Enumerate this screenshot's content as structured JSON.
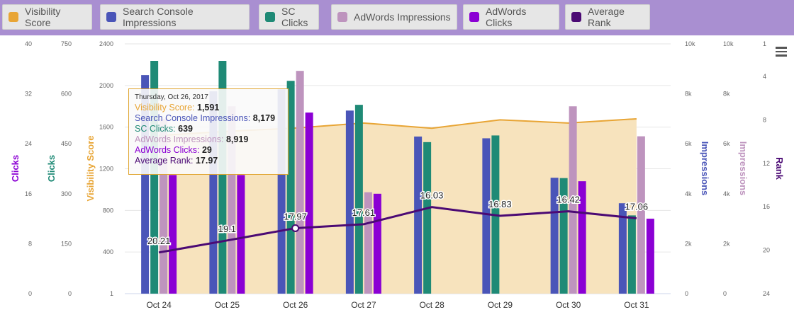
{
  "legend": [
    {
      "label": "Visibility Score",
      "color": "#e8a535"
    },
    {
      "label": "Search Console Impressions",
      "color": "#4a55b8"
    },
    {
      "label": "SC Clicks",
      "color": "#1f8a76"
    },
    {
      "label": "AdWords Impressions",
      "color": "#be94be"
    },
    {
      "label": "AdWords Clicks",
      "color": "#8b00d4"
    },
    {
      "label": "Average Rank",
      "color": "#4b0a74"
    }
  ],
  "tooltip": {
    "date": "Thursday, Oct 26, 2017",
    "rows": [
      {
        "label": "Visibility Score:",
        "value": "1,591",
        "color": "#e8a535"
      },
      {
        "label": "Search Console Impressions:",
        "value": "8,179",
        "color": "#4a55b8"
      },
      {
        "label": "SC Clicks:",
        "value": "639",
        "color": "#1f8a76"
      },
      {
        "label": "AdWords Impressions:",
        "value": "8,919",
        "color": "#be94be"
      },
      {
        "label": "AdWords Clicks:",
        "value": "29",
        "color": "#8b00d4"
      },
      {
        "label": "Average Rank:",
        "value": "17.97",
        "color": "#4b0a74"
      }
    ]
  },
  "chart_data": {
    "type": "bar",
    "categories": [
      "Oct 24",
      "Oct 25",
      "Oct 26",
      "Oct 27",
      "Oct 28",
      "Oct 29",
      "Oct 30",
      "Oct 31"
    ],
    "axes": {
      "adwords_clicks": {
        "title": "Clicks",
        "ticks": [
          "40",
          "32",
          "24",
          "16",
          "8",
          "0"
        ],
        "range": [
          0,
          40
        ],
        "color": "#8b00d4"
      },
      "sc_clicks": {
        "title": "Clicks",
        "ticks": [
          "750",
          "600",
          "450",
          "300",
          "150",
          "0"
        ],
        "range": [
          0,
          750
        ],
        "color": "#1f8a76"
      },
      "visibility": {
        "title": "Visibility Score",
        "ticks": [
          "2400",
          "2000",
          "1600",
          "1200",
          "800",
          "400",
          "1"
        ],
        "range": [
          1,
          2400
        ],
        "color": "#e8a535"
      },
      "sc_impressions": {
        "title": "Impressions",
        "ticks": [
          "10k",
          "8k",
          "6k",
          "4k",
          "2k",
          "0"
        ],
        "range": [
          0,
          10000
        ],
        "color": "#4a55b8"
      },
      "adwords_impressions": {
        "title": "Impressions",
        "ticks": [
          "10k",
          "8k",
          "6k",
          "4k",
          "2k",
          "0"
        ],
        "range": [
          0,
          10000
        ],
        "color": "#be94be"
      },
      "rank": {
        "title": "Rank",
        "ticks": [
          "1",
          "4",
          "8",
          "12",
          "16",
          "20",
          "24"
        ],
        "range": [
          1,
          24
        ],
        "reversed": true,
        "color": "#4b0a74"
      }
    },
    "series": [
      {
        "name": "Visibility Score",
        "type": "area",
        "axis": "visibility",
        "values": [
          1520,
          1560,
          1591,
          1640,
          1590,
          1670,
          1640,
          1680
        ]
      },
      {
        "name": "Search Console Impressions",
        "type": "bar",
        "axis": "sc_impressions",
        "values": [
          8750,
          8100,
          8179,
          7330,
          6290,
          6220,
          4640,
          3620
        ]
      },
      {
        "name": "SC Clicks",
        "type": "bar",
        "axis": "sc_clicks",
        "values": [
          699,
          699,
          639,
          567,
          455,
          475,
          347,
          235
        ]
      },
      {
        "name": "AdWords Impressions",
        "type": "bar",
        "axis": "adwords_impressions",
        "values": [
          7000,
          7500,
          8919,
          4060,
          0,
          0,
          7500,
          6300
        ]
      },
      {
        "name": "AdWords Clicks",
        "type": "bar",
        "axis": "adwords_clicks",
        "values": [
          19,
          19,
          29,
          16,
          0,
          0,
          18,
          12
        ]
      },
      {
        "name": "Average Rank",
        "type": "line",
        "axis": "rank",
        "values": [
          20.21,
          19.1,
          17.97,
          17.61,
          16.03,
          16.83,
          16.42,
          17.06
        ],
        "labels": [
          "20.21",
          "19.1",
          "17.97",
          "17.61",
          "16.03",
          "16.83",
          "16.42",
          "17.06"
        ]
      }
    ]
  }
}
